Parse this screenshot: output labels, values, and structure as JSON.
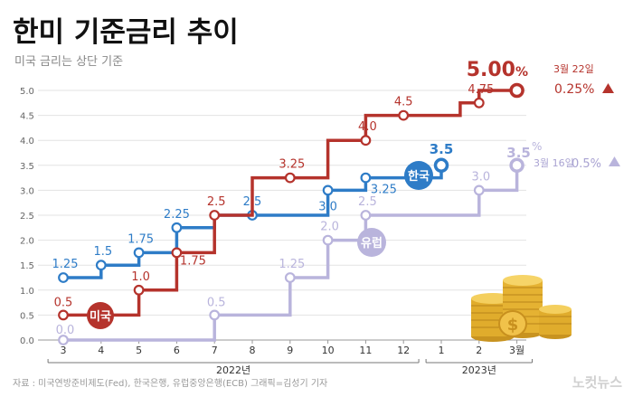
{
  "title": "한미 기준금리 추이",
  "subtitle": "미국 금리는 상단 기준",
  "source": "자료 : 미국연방준비제도(Fed), 한국은행, 유럽중앙은행(ECB)   그래픽=김성기 기자",
  "watermark": "노컷뉴스",
  "colors": {
    "us": "#b5332c",
    "korea": "#2e7cc7",
    "europe": "#b9b4dc",
    "grid": "#e3e3e3",
    "text": "#555555"
  },
  "chart_data": {
    "type": "line",
    "step": true,
    "title": "한미 기준금리 추이",
    "subtitle": "미국 금리는 상단 기준",
    "x": [
      "3",
      "4",
      "5",
      "6",
      "7",
      "8",
      "9",
      "10",
      "11",
      "12",
      "1",
      "2",
      "3월"
    ],
    "x_groups": [
      {
        "label": "2022년",
        "from": 0,
        "to": 9
      },
      {
        "label": "2023년",
        "from": 10,
        "to": 12
      }
    ],
    "yticks": [
      "0.0",
      "0.5",
      "1.0",
      "1.5",
      "2.0",
      "2.5",
      "3.0",
      "3.5",
      "4.0",
      "4.5",
      "5.0"
    ],
    "ylim": [
      0,
      5
    ],
    "grid": true,
    "series": [
      {
        "name": "미국",
        "key": "us",
        "path": [
          [
            0,
            0.5
          ],
          [
            2,
            0.5
          ],
          [
            2,
            1.0
          ],
          [
            3,
            1.0
          ],
          [
            3,
            1.75
          ],
          [
            4,
            1.75
          ],
          [
            4,
            2.5
          ],
          [
            5,
            2.5
          ],
          [
            5,
            3.25
          ],
          [
            7,
            3.25
          ],
          [
            7,
            4.0
          ],
          [
            8,
            4.0
          ],
          [
            8,
            4.5
          ],
          [
            10.5,
            4.5
          ],
          [
            10.5,
            4.75
          ],
          [
            11,
            4.75
          ],
          [
            11,
            5.0
          ],
          [
            12,
            5.0
          ]
        ],
        "points": [
          {
            "x": 0,
            "y": 0.5,
            "label": "0.5"
          },
          {
            "x": 2,
            "y": 1.0,
            "label": "1.0"
          },
          {
            "x": 3,
            "y": 1.75,
            "label": "1.75"
          },
          {
            "x": 4,
            "y": 2.5,
            "label": "2.5"
          },
          {
            "x": 6,
            "y": 3.25,
            "label": "3.25"
          },
          {
            "x": 8,
            "y": 4.0,
            "label": "4.0"
          },
          {
            "x": 9,
            "y": 4.5,
            "label": "4.5"
          },
          {
            "x": 11,
            "y": 4.75,
            "label": "4.75"
          },
          {
            "x": 12,
            "y": 5.0,
            "label": "5.00"
          }
        ]
      },
      {
        "name": "한국",
        "key": "korea",
        "path": [
          [
            0,
            1.25
          ],
          [
            1,
            1.25
          ],
          [
            1,
            1.5
          ],
          [
            2,
            1.5
          ],
          [
            2,
            1.75
          ],
          [
            3,
            1.75
          ],
          [
            3,
            2.25
          ],
          [
            4,
            2.25
          ],
          [
            4,
            2.5
          ],
          [
            5,
            2.5
          ],
          [
            5,
            2.5
          ],
          [
            7,
            2.5
          ],
          [
            7,
            3.0
          ],
          [
            8,
            3.0
          ],
          [
            8,
            3.25
          ],
          [
            10,
            3.25
          ],
          [
            10,
            3.5
          ]
        ],
        "points": [
          {
            "x": 0,
            "y": 1.25,
            "label": "1.25"
          },
          {
            "x": 1,
            "y": 1.5,
            "label": "1.5"
          },
          {
            "x": 2,
            "y": 1.75,
            "label": "1.75"
          },
          {
            "x": 3,
            "y": 2.25,
            "label": "2.25"
          },
          {
            "x": 5,
            "y": 2.5,
            "label": "2.5"
          },
          {
            "x": 7,
            "y": 3.0,
            "label": "3.0"
          },
          {
            "x": 8,
            "y": 3.25,
            "label": "3.25"
          },
          {
            "x": 10,
            "y": 3.5,
            "label": "3.5"
          }
        ]
      },
      {
        "name": "유럽",
        "key": "europe",
        "path": [
          [
            0,
            0
          ],
          [
            4,
            0
          ],
          [
            4,
            0.5
          ],
          [
            6,
            0.5
          ],
          [
            6,
            1.25
          ],
          [
            7,
            1.25
          ],
          [
            7,
            2.0
          ],
          [
            8,
            2.0
          ],
          [
            8,
            2.5
          ],
          [
            11,
            2.5
          ],
          [
            11,
            3.0
          ],
          [
            12,
            3.0
          ],
          [
            12,
            3.5
          ]
        ],
        "points": [
          {
            "x": 0,
            "y": 0.0,
            "label": "0.0"
          },
          {
            "x": 4,
            "y": 0.5,
            "label": "0.5"
          },
          {
            "x": 6,
            "y": 1.25,
            "label": "1.25"
          },
          {
            "x": 7,
            "y": 2.0,
            "label": "2.0"
          },
          {
            "x": 8,
            "y": 2.5,
            "label": "2.5"
          },
          {
            "x": 11,
            "y": 3.0,
            "label": "3.0"
          },
          {
            "x": 12,
            "y": 3.5,
            "label": "3.5"
          }
        ]
      }
    ],
    "annotations": {
      "us": {
        "value": "5.00",
        "unit": "%",
        "date": "3월 22일",
        "change": "0.25%"
      },
      "europe": {
        "unit": "%",
        "date": "3월 16일",
        "change": "0.5%"
      }
    }
  }
}
